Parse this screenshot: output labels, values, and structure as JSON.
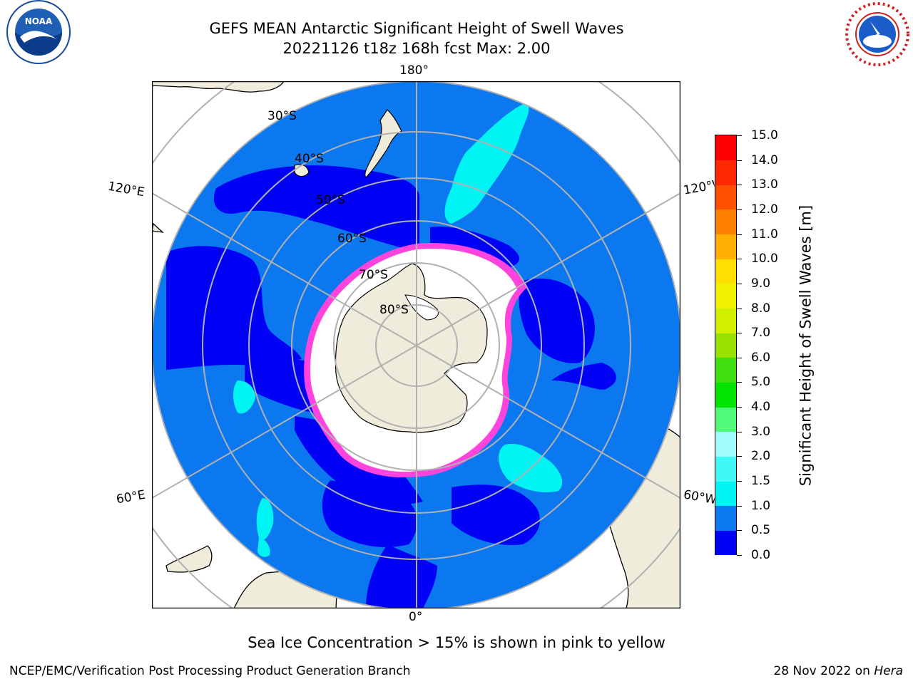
{
  "title": {
    "line1": "GEFS MEAN Antarctic Significant Height of Swell Waves",
    "line2": "20221126 t18z 168h fcst   Max: 2.00"
  },
  "logos": {
    "left": "NOAA",
    "right": "NATIONAL WEATHER SERVICE"
  },
  "map": {
    "projection": "south-polar-stereographic",
    "longitude_labels": {
      "top": "180°",
      "bottom": "0°",
      "left_upper": "120°E",
      "left_lower": "60°E",
      "right_upper": "120°W",
      "right_lower": "60°W"
    },
    "latitude_labels": [
      "30°S",
      "40°S",
      "50°S",
      "60°S",
      "70°S",
      "80°S"
    ],
    "colors": {
      "land": "#efecdc",
      "ocean_low": "#0000f4",
      "ocean_mid": "#0b78f0",
      "ocean_high": "#00f4f4",
      "sea_ice": "#ffffff",
      "ice_edge": "#ff44dd",
      "grid": "#b0b0b0"
    }
  },
  "colorbar": {
    "label": "Significant Height of Swell Waves [m]",
    "ticks": [
      "0.0",
      "0.5",
      "1.0",
      "1.5",
      "2.0",
      "3.0",
      "4.0",
      "5.0",
      "6.0",
      "7.0",
      "8.0",
      "9.0",
      "10.0",
      "11.0",
      "12.0",
      "13.0",
      "14.0",
      "15.0"
    ],
    "colors": [
      "#0000f4",
      "#0b78f0",
      "#00f4f4",
      "#40f8f8",
      "#a0fcfc",
      "#50fa78",
      "#00e400",
      "#40e010",
      "#98e000",
      "#d0f000",
      "#f0f000",
      "#ffe000",
      "#ffb000",
      "#ff8000",
      "#ff5000",
      "#ff2800",
      "#ff0000"
    ]
  },
  "caption": "Sea Ice Concentration > 15% is shown in pink to yellow",
  "footer": {
    "left": "NCEP/EMC/Verification Post Processing Product Generation Branch",
    "right_prefix": "28 Nov 2022 on ",
    "right_host": "Hera"
  }
}
